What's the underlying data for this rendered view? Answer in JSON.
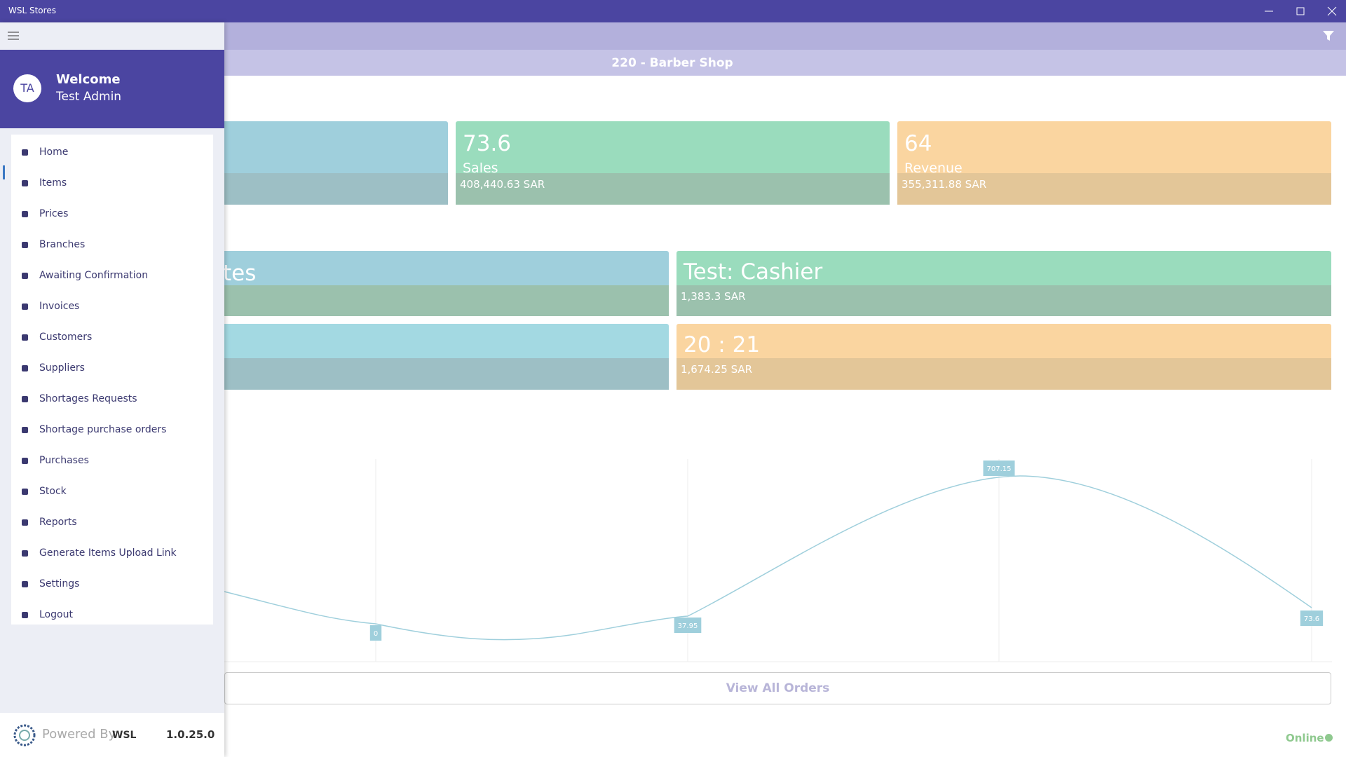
{
  "window": {
    "title": "WSL Stores"
  },
  "header": {
    "store": "220 - Barber Shop"
  },
  "cards": [
    {
      "value": "73.6",
      "label": "Sales",
      "amount": "408,440.63 SAR"
    },
    {
      "value": "64",
      "label": "Revenue",
      "amount": "355,311.88 SAR"
    }
  ],
  "panels": [
    {
      "title": "tes"
    },
    {
      "title": "Test: Cashier",
      "amount": "1,383.3 SAR"
    },
    {
      "title": "20 : 21",
      "amount": "1,674.25 SAR"
    }
  ],
  "chart": {
    "point_labels": [
      "0",
      "37.95",
      "707.15",
      "73.6"
    ]
  },
  "actions": {
    "view_all": "View All Orders"
  },
  "status": {
    "connection": "Online"
  },
  "drawer": {
    "welcome": "Welcome",
    "user": "Test Admin",
    "initials": "TA",
    "menu": [
      "Home",
      "Items",
      "Prices",
      "Branches",
      "Awaiting Confirmation",
      "Invoices",
      "Customers",
      "Suppliers",
      "Shortages Requests",
      "Shortage purchase orders",
      "Purchases",
      "Stock",
      "Reports",
      "Generate Items Upload Link",
      "Settings",
      "Logout"
    ],
    "powered_by": "Powered By",
    "brand": "WSL",
    "version": "1.0.25.0"
  }
}
